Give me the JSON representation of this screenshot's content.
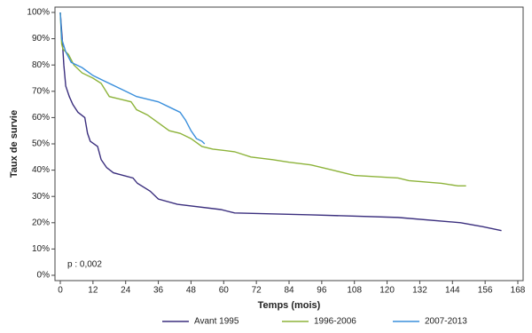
{
  "chart_data": {
    "type": "line",
    "x_label": "Temps (mois)",
    "y_label": "Taux de survie",
    "annotation": "p : 0,002",
    "xlim": [
      0,
      168
    ],
    "xticks": [
      0,
      12,
      24,
      36,
      48,
      60,
      72,
      84,
      96,
      108,
      120,
      132,
      144,
      156,
      168
    ],
    "ylim": [
      0,
      100
    ],
    "yticks": [
      {
        "value": 0,
        "label": "0%"
      },
      {
        "value": 10,
        "label": "10%"
      },
      {
        "value": 20,
        "label": "20%"
      },
      {
        "value": 30,
        "label": "30%"
      },
      {
        "value": 40,
        "label": "40%"
      },
      {
        "value": 50,
        "label": "50%"
      },
      {
        "value": 60,
        "label": "60%"
      },
      {
        "value": 70,
        "label": "70%"
      },
      {
        "value": 80,
        "label": "80%"
      },
      {
        "value": 90,
        "label": "90%"
      },
      {
        "value": 100,
        "label": "100%"
      }
    ],
    "series": [
      {
        "name": "Avant 1995",
        "color": "#3b2f7e",
        "x": [
          0,
          0.7,
          1.3,
          2,
          3.3,
          4.6,
          6.5,
          9,
          10,
          11,
          13.7,
          15,
          17,
          19.5,
          26.7,
          28.3,
          33,
          36,
          43,
          59,
          64,
          92,
          124,
          147,
          155,
          162
        ],
        "values": [
          100,
          90,
          80,
          72,
          68,
          65,
          62,
          60,
          54,
          51,
          49,
          44,
          41,
          39,
          37,
          35,
          32,
          29,
          27,
          25,
          23.7,
          23,
          22,
          20,
          18.5,
          17
        ]
      },
      {
        "name": "1996-2006",
        "color": "#8db33a",
        "x": [
          0,
          0.5,
          1,
          3,
          5,
          8,
          12,
          15,
          18,
          22,
          26,
          28,
          32,
          36,
          40,
          44,
          48,
          52,
          56,
          64,
          70,
          78,
          84,
          92,
          100,
          104,
          108,
          124,
          128,
          140,
          146,
          149
        ],
        "values": [
          100,
          88,
          86,
          84,
          80,
          77,
          75,
          73,
          68,
          67,
          66,
          63,
          61,
          58,
          55,
          54,
          52,
          49,
          48,
          47,
          45,
          44,
          43,
          42,
          40,
          39,
          38,
          37,
          36,
          35,
          34,
          34
        ]
      },
      {
        "name": "2007-2013",
        "color": "#3a8fdc",
        "x": [
          0,
          0.5,
          2,
          4,
          8,
          12,
          16,
          20,
          24,
          28,
          32,
          36,
          40,
          44,
          46,
          48,
          50,
          52,
          53
        ],
        "values": [
          100,
          90,
          85,
          81,
          79,
          76,
          74,
          72,
          70,
          68,
          67,
          66,
          64,
          62,
          59,
          55,
          52,
          51,
          50
        ]
      }
    ]
  }
}
